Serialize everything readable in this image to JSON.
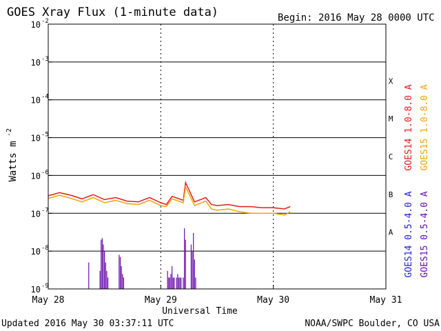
{
  "header": {
    "title": "GOES Xray Flux (1-minute data)",
    "begin": "Begin:  2016 May 28 0000 UTC"
  },
  "footer": {
    "updated": "Updated 2016 May 30 03:37:11 UTC",
    "source": "NOAA/SWPC Boulder, CO USA"
  },
  "chart_data": {
    "type": "line",
    "xlabel": "Universal Time",
    "ylabel": "Watts m",
    "ylabel_superscript": "-2",
    "y_scale": "log",
    "ylim": [
      1e-09,
      0.01
    ],
    "x_range_days": [
      "May 28",
      "May 31"
    ],
    "x_ticks": [
      "May 28",
      "May 29",
      "May 30",
      "May 31"
    ],
    "y_ticks": [
      {
        "base": "10",
        "exp": "-2"
      },
      {
        "base": "10",
        "exp": "-3"
      },
      {
        "base": "10",
        "exp": "-4"
      },
      {
        "base": "10",
        "exp": "-5"
      },
      {
        "base": "10",
        "exp": "-6"
      },
      {
        "base": "10",
        "exp": "-7"
      },
      {
        "base": "10",
        "exp": "-8"
      },
      {
        "base": "10",
        "exp": "-9"
      }
    ],
    "flare_classes": [
      "X",
      "M",
      "C",
      "B",
      "A"
    ],
    "legend_placement": "right",
    "series": [
      {
        "name": "GOES14 1.0-8.0 A",
        "color": "#e8191c",
        "x_days": [
          0.0,
          0.1,
          0.2,
          0.3,
          0.4,
          0.5,
          0.6,
          0.7,
          0.8,
          0.9,
          1.0,
          1.05,
          1.1,
          1.2,
          1.22,
          1.3,
          1.4,
          1.45,
          1.5,
          1.6,
          1.7,
          1.8,
          1.9,
          2.0,
          2.1,
          2.15
        ],
        "values": [
          2.9e-07,
          3.5e-07,
          3e-07,
          2.4e-07,
          3.1e-07,
          2.3e-07,
          2.6e-07,
          2.1e-07,
          2e-07,
          2.6e-07,
          1.9e-07,
          1.7e-07,
          2.8e-07,
          2.2e-07,
          6.5e-07,
          2e-07,
          2.6e-07,
          1.7e-07,
          1.6e-07,
          1.7e-07,
          1.5e-07,
          1.5e-07,
          1.4e-07,
          1.4e-07,
          1.3e-07,
          1.5e-07
        ]
      },
      {
        "name": "GOES15 1.0-8.0 A",
        "color": "#f0a30a",
        "x_days": [
          0.0,
          0.1,
          0.2,
          0.3,
          0.4,
          0.5,
          0.6,
          0.7,
          0.8,
          0.9,
          1.0,
          1.05,
          1.1,
          1.2,
          1.22,
          1.3,
          1.4,
          1.45,
          1.5,
          1.6,
          1.7,
          1.8,
          1.9,
          2.0,
          2.1,
          2.15
        ],
        "values": [
          2.5e-07,
          3e-07,
          2.5e-07,
          2e-07,
          2.6e-07,
          1.9e-07,
          2.2e-07,
          1.8e-07,
          1.7e-07,
          2.2e-07,
          1.6e-07,
          1.5e-07,
          2.4e-07,
          1.9e-07,
          5e-07,
          1.6e-07,
          2.1e-07,
          1.3e-07,
          1.2e-07,
          1.3e-07,
          1.1e-07,
          1e-07,
          1e-07,
          1e-07,
          9e-08,
          1.1e-07
        ]
      },
      {
        "name": "GOES14 0.5-4.0 A",
        "color": "#1f1fd0",
        "x_days": [],
        "values": []
      },
      {
        "name": "GOES15 0.5-4.0 A",
        "color": "#6a0dad",
        "x_days": [
          0.36,
          0.46,
          0.47,
          0.48,
          0.49,
          0.5,
          0.51,
          0.52,
          0.53,
          0.63,
          0.64,
          0.65,
          0.66,
          0.67,
          1.06,
          1.07,
          1.08,
          1.09,
          1.1,
          1.11,
          1.12,
          1.14,
          1.15,
          1.16,
          1.17,
          1.18,
          1.2,
          1.21,
          1.22,
          1.27,
          1.28,
          1.29,
          1.3,
          1.31
        ],
        "values": [
          5e-09,
          3e-09,
          2e-08,
          2.2e-08,
          1.5e-08,
          1e-08,
          5e-09,
          3e-09,
          2e-09,
          8e-09,
          7e-09,
          4e-09,
          2.5e-09,
          2e-09,
          3e-09,
          2e-09,
          2e-09,
          2.5e-09,
          4e-09,
          2e-09,
          2e-09,
          2e-09,
          2.5e-09,
          2e-09,
          2e-09,
          2e-09,
          2e-09,
          4e-08,
          2e-08,
          1.5e-08,
          1e-08,
          3e-08,
          6e-09,
          2e-09
        ]
      }
    ]
  }
}
